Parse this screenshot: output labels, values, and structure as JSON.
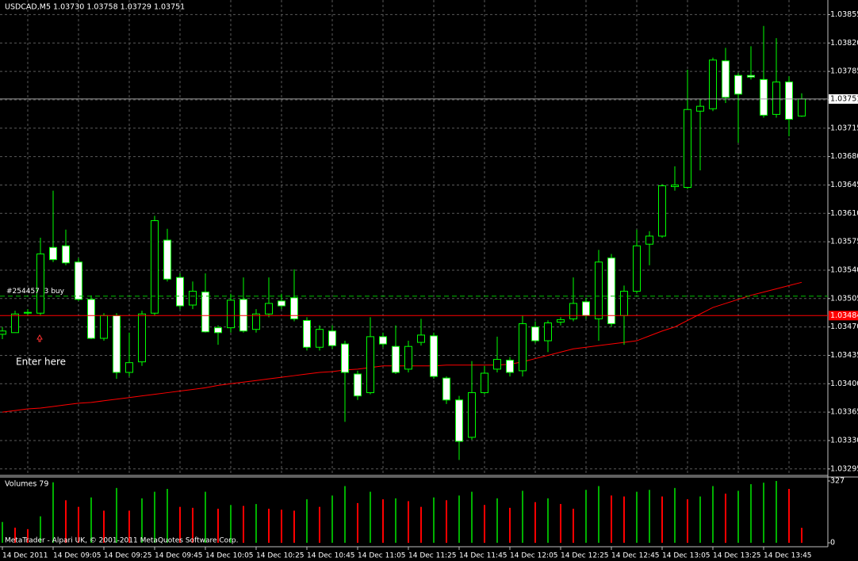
{
  "chart_data": {
    "type": "candlestick",
    "title": "USDCAD,M5  1.03730 1.03758 1.03729 1.03751",
    "categories": [
      "14 Dec 2011",
      null,
      null,
      null,
      "14 Dec 09:05",
      null,
      null,
      null,
      "14 Dec 09:25",
      null,
      null,
      null,
      "14 Dec 09:45",
      null,
      null,
      null,
      "14 Dec 10:05",
      null,
      null,
      null,
      "14 Dec 10:25",
      null,
      null,
      null,
      "14 Dec 10:45",
      null,
      null,
      null,
      "14 Dec 11:05",
      null,
      null,
      null,
      "14 Dec 11:25",
      null,
      null,
      null,
      "14 Dec 11:45",
      null,
      null,
      null,
      "14 Dec 12:05",
      null,
      null,
      null,
      "14 Dec 12:25",
      null,
      null,
      null,
      "14 Dec 12:45",
      null,
      null,
      null,
      "14 Dec 13:05",
      null,
      null,
      null,
      "14 Dec 13:25",
      null,
      null,
      null,
      "14 Dec 13:45",
      null,
      null,
      null
    ],
    "open": [
      1.03461,
      1.03463,
      1.03487,
      1.03487,
      1.03568,
      1.0357,
      1.0355,
      1.03504,
      1.03456,
      1.03484,
      1.03414,
      1.03427,
      1.03487,
      1.03577,
      1.03531,
      1.03497,
      1.03513,
      1.03469,
      1.03469,
      1.03504,
      1.03467,
      1.03486,
      1.03502,
      1.03506,
      1.03478,
      1.03445,
      1.03465,
      1.03449,
      1.03412,
      1.03389,
      1.03458,
      1.03446,
      1.03418,
      1.03451,
      1.03459,
      1.03407,
      1.0338,
      1.03334,
      1.03389,
      1.03418,
      1.03429,
      1.03416,
      1.0347,
      1.03453,
      1.03476,
      1.0348,
      1.03501,
      1.0348,
      1.03555,
      1.03484,
      1.03514,
      1.03572,
      1.03582,
      1.03643,
      1.03642,
      1.03736,
      1.03739,
      1.03798,
      1.0378,
      1.0378,
      1.03775,
      1.03732,
      1.03772,
      1.0373
    ],
    "high": [
      1.0347,
      1.0349,
      1.03492,
      1.0358,
      1.03638,
      1.0359,
      1.03555,
      1.03509,
      1.03487,
      1.03487,
      1.03463,
      1.0349,
      1.03607,
      1.03591,
      1.03536,
      1.03526,
      1.03536,
      1.03472,
      1.03511,
      1.03531,
      1.03492,
      1.03531,
      1.03511,
      1.03541,
      1.03482,
      1.03472,
      1.03472,
      1.03453,
      1.03416,
      1.03482,
      1.03463,
      1.03472,
      1.03453,
      1.0348,
      1.03463,
      1.03409,
      1.03385,
      1.03428,
      1.03422,
      1.03458,
      1.03433,
      1.03484,
      1.03477,
      1.03478,
      1.03482,
      1.03531,
      1.03506,
      1.03565,
      1.0356,
      1.03521,
      1.0359,
      1.03588,
      1.03646,
      1.03668,
      1.03787,
      1.03751,
      1.03802,
      1.03814,
      1.03783,
      1.03816,
      1.03841,
      1.03826,
      1.03779,
      1.03758
    ],
    "low": [
      1.03455,
      1.03463,
      1.03484,
      1.03484,
      1.0355,
      1.03546,
      1.03502,
      1.03455,
      1.03453,
      1.03406,
      1.03409,
      1.03422,
      1.03484,
      1.03526,
      1.03492,
      1.03492,
      1.03463,
      1.03448,
      1.03463,
      1.03463,
      1.03463,
      1.03482,
      1.03492,
      1.03477,
      1.03441,
      1.03441,
      1.03443,
      1.03353,
      1.0338,
      1.03387,
      1.03445,
      1.03412,
      1.03414,
      1.03447,
      1.03406,
      1.03375,
      1.03306,
      1.03331,
      1.03387,
      1.03414,
      1.03409,
      1.03409,
      1.0345,
      1.03439,
      1.03472,
      1.03477,
      1.0348,
      1.03453,
      1.0347,
      1.03448,
      1.03511,
      1.03546,
      1.0358,
      1.03638,
      1.0364,
      1.03663,
      1.03736,
      1.03746,
      1.03697,
      1.03775,
      1.03728,
      1.03728,
      1.03705,
      1.03729
    ],
    "close": [
      1.03465,
      1.03486,
      1.03488,
      1.0356,
      1.03553,
      1.03549,
      1.03504,
      1.03456,
      1.03484,
      1.03414,
      1.03426,
      1.03486,
      1.03601,
      1.03529,
      1.03496,
      1.03514,
      1.03464,
      1.03463,
      1.03503,
      1.03465,
      1.03486,
      1.03499,
      1.03496,
      1.0348,
      1.03445,
      1.03467,
      1.03447,
      1.03414,
      1.03385,
      1.03458,
      1.03449,
      1.03414,
      1.03446,
      1.0346,
      1.03409,
      1.0338,
      1.03329,
      1.03389,
      1.03413,
      1.0343,
      1.03414,
      1.03474,
      1.03453,
      1.03475,
      1.03479,
      1.03499,
      1.03484,
      1.0355,
      1.03474,
      1.03514,
      1.0357,
      1.03582,
      1.03644,
      1.03645,
      1.03738,
      1.03742,
      1.03799,
      1.03753,
      1.03757,
      1.03778,
      1.03731,
      1.03772,
      1.03726,
      1.03751
    ],
    "outline_color": "#00ff00",
    "bull_fill": "#000000",
    "bear_fill": "#ffffff",
    "ma": {
      "color": "#ff0000",
      "values": [
        1.03365,
        1.03367,
        1.03369,
        1.0337,
        1.03372,
        1.03374,
        1.03376,
        1.03377,
        1.03379,
        1.03381,
        1.03383,
        1.03385,
        1.03387,
        1.03389,
        1.03391,
        1.03393,
        1.03395,
        1.03398,
        1.034,
        1.03402,
        1.03404,
        1.03406,
        1.03408,
        1.0341,
        1.03412,
        1.03414,
        1.03415,
        1.03417,
        1.03418,
        1.0342,
        1.03422,
        1.03422,
        1.03422,
        1.03422,
        1.03422,
        1.03423,
        1.03423,
        1.03423,
        1.03423,
        1.03423,
        1.03424,
        1.03427,
        1.03431,
        1.03435,
        1.03439,
        1.03443,
        1.03445,
        1.03447,
        1.03449,
        1.03451,
        1.03453,
        1.03459,
        1.03465,
        1.0347,
        1.03478,
        1.03486,
        1.03494,
        1.03499,
        1.03504,
        1.03509,
        1.03513,
        1.03517,
        1.03521,
        1.03525
      ]
    },
    "ylim": [
      1.03287,
      1.03873
    ],
    "yticks": [
      1.03295,
      {
        "value": 1.0333,
        "label": "1.03330"
      },
      1.03365,
      {
        "value": 1.034,
        "label": "1.03400"
      },
      1.03435,
      {
        "value": 1.0347,
        "label": "1.03470"
      },
      1.03505,
      {
        "value": 1.0354,
        "label": "1.03540"
      },
      1.03575,
      {
        "value": 1.0361,
        "label": "1.03610"
      },
      1.03645,
      {
        "value": 1.0368,
        "label": "1.03680"
      },
      1.03715,
      {
        "value": 1.0375,
        "label": "1.03750"
      },
      1.03785,
      {
        "value": 1.0382,
        "label": "1.03820"
      },
      1.03855
    ],
    "grid": true,
    "bid": 1.03751,
    "level": {
      "value": 1.03484,
      "color": "#ff0000"
    },
    "order": {
      "value": 1.03508,
      "label": "#254457  3 buy",
      "color": "#00c000"
    },
    "annotation": "Enter here",
    "volume": {
      "label": "Volumes 79",
      "up_color": "#00b000",
      "down_color": "#ff0000",
      "values": [
        110,
        80,
        72,
        140,
        320,
        225,
        190,
        240,
        170,
        290,
        170,
        235,
        270,
        285,
        190,
        185,
        270,
        180,
        200,
        195,
        205,
        180,
        175,
        170,
        230,
        190,
        250,
        300,
        210,
        270,
        230,
        235,
        220,
        190,
        240,
        225,
        250,
        270,
        200,
        235,
        185,
        275,
        215,
        235,
        205,
        180,
        280,
        300,
        250,
        245,
        270,
        280,
        245,
        290,
        230,
        245,
        300,
        260,
        275,
        310,
        318,
        327,
        285,
        79
      ],
      "ylim": [
        0,
        327
      ],
      "yticks": [
        0,
        327
      ]
    },
    "footer": "MetaTrader - Alpari UK, © 2001-2011 MetaQuotes Software Corp."
  }
}
